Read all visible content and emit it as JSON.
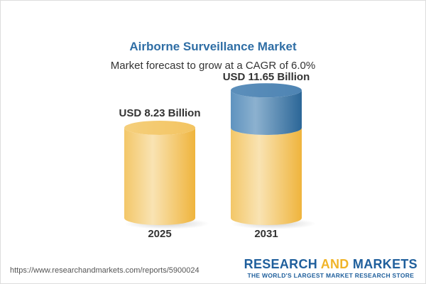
{
  "title": "Airborne Surveillance Market",
  "subtitle": "Market forecast to grow at a CAGR of 6.0%",
  "chart_data": {
    "type": "bar",
    "style": "3d-cylinder",
    "categories": [
      "2025",
      "2031"
    ],
    "values": [
      8.23,
      11.65
    ],
    "data_labels": [
      "USD 8.23 Billion",
      "USD 11.65 Billion"
    ],
    "unit": "USD Billion",
    "cagr": "6.0%",
    "colors": {
      "base": "#f2c14e",
      "growth": "#3f78a8"
    }
  },
  "footer": {
    "url": "https://www.researchandmarkets.com/reports/5900024",
    "logo_part1": "RESEARCH ",
    "logo_part2": "AND",
    "logo_part3": " MARKETS",
    "logo_tagline": "THE WORLD'S LARGEST MARKET RESEARCH STORE"
  }
}
